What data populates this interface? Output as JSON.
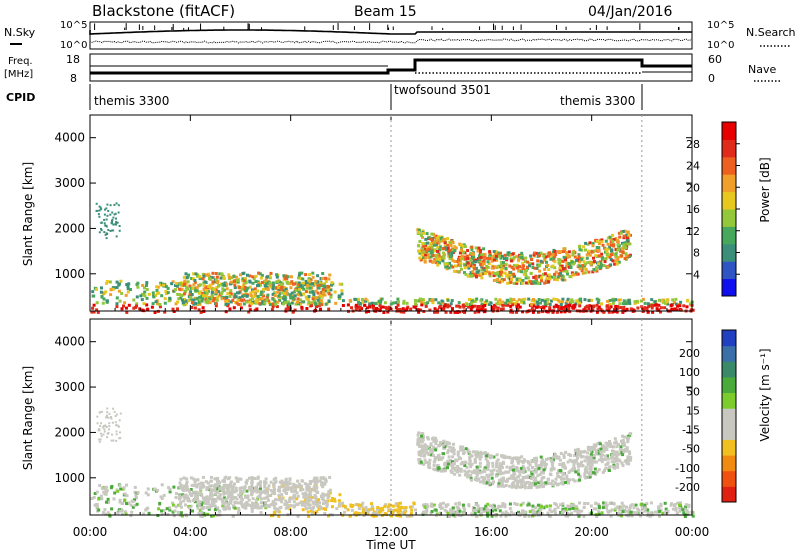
{
  "header": {
    "station": "Blackstone (fitACF)",
    "beam": "Beam 15",
    "date": "04/Jan/2016"
  },
  "summary": {
    "nsky_label": "N.Sky",
    "nsearch_label": "N.Search",
    "freq_label_top": "Freq.",
    "freq_label_bottom": "[MHz]",
    "nave_label": "Nave",
    "cpid_label": "CPID",
    "left_ticks_top": [
      "10^5",
      "10^0"
    ],
    "right_ticks_top": [
      "10^5",
      "10^0"
    ],
    "freq_ticks": [
      "18",
      "8"
    ],
    "nave_ticks": [
      "60",
      "0"
    ],
    "cpid_segments": [
      {
        "label": "themis 3300",
        "start_hour": 0,
        "end_hour": 12.0
      },
      {
        "label": "twofsound 3501",
        "start_hour": 12.0,
        "end_hour": 22.0
      },
      {
        "label": "themis 3300",
        "start_hour": 22.0,
        "end_hour": 24.0
      }
    ]
  },
  "axes": {
    "x_label": "Time UT",
    "x_ticks": [
      "00:00",
      "04:00",
      "08:00",
      "12:00",
      "16:00",
      "20:00",
      "00:00"
    ],
    "y_label": "Slant Range [km]",
    "y_ticks": [
      "1000",
      "2000",
      "3000",
      "4000"
    ]
  },
  "power_bar": {
    "label": "Power [dB]",
    "ticks": [
      "4",
      "8",
      "12",
      "16",
      "20",
      "24",
      "28"
    ],
    "colors": [
      "#1010ee",
      "#2f55c4",
      "#3b8f7a",
      "#47a75c",
      "#93c83a",
      "#e6c81e",
      "#f0a02a",
      "#ee6020",
      "#e02a1a",
      "#e60000"
    ]
  },
  "velocity_bar": {
    "label": "Velocity [m s⁻¹]",
    "ticks": [
      "200",
      "100",
      "50",
      "15",
      "-15",
      "-50",
      "-100",
      "-200"
    ],
    "colors": [
      "#2040c0",
      "#3a6fa8",
      "#3a8a6a",
      "#4aaa3a",
      "#7ccc2e",
      "#c8c8c0",
      "#c8c8c0",
      "#f0c020",
      "#f08a10",
      "#f05010",
      "#e02010"
    ]
  },
  "chart_data": [
    {
      "type": "heatmap",
      "title": "Power",
      "xlabel": "Time UT",
      "ylabel": "Slant Range [km]",
      "xlim": [
        "00:00",
        "24:00"
      ],
      "ylim": [
        180,
        4500
      ],
      "colorbar": {
        "label": "Power [dB]",
        "range": [
          0,
          30
        ]
      },
      "features": [
        {
          "name": "near-range scatter",
          "time": [
            "00:00",
            "24:00"
          ],
          "range_km": [
            180,
            900
          ],
          "power_db": [
            4,
            30
          ]
        },
        {
          "name": "daytime patch",
          "time": [
            "03:30",
            "09:30"
          ],
          "range_km": [
            300,
            1050
          ],
          "power_db": [
            8,
            24
          ]
        },
        {
          "name": "evening arc",
          "time": [
            "13:00",
            "21:30"
          ],
          "range_km": [
            1000,
            2300
          ],
          "power_db": [
            8,
            26
          ]
        }
      ]
    },
    {
      "type": "heatmap",
      "title": "Velocity",
      "xlabel": "Time UT",
      "ylabel": "Slant Range [km]",
      "xlim": [
        "00:00",
        "24:00"
      ],
      "ylim": [
        180,
        4500
      ],
      "colorbar": {
        "label": "Velocity [m s⁻¹]",
        "range": [
          -200,
          200
        ]
      },
      "features": [
        {
          "name": "ground scatter near range",
          "time": [
            "00:00",
            "24:00"
          ],
          "range_km": [
            180,
            900
          ],
          "velocity_ms": [
            -15,
            15
          ]
        },
        {
          "name": "daytime patch",
          "time": [
            "03:30",
            "09:30"
          ],
          "range_km": [
            300,
            1050
          ],
          "velocity_ms": [
            -15,
            15
          ]
        },
        {
          "name": "evening arc",
          "time": [
            "13:00",
            "21:30"
          ],
          "range_km": [
            1000,
            2300
          ],
          "velocity_ms": [
            -15,
            15
          ]
        }
      ]
    }
  ]
}
